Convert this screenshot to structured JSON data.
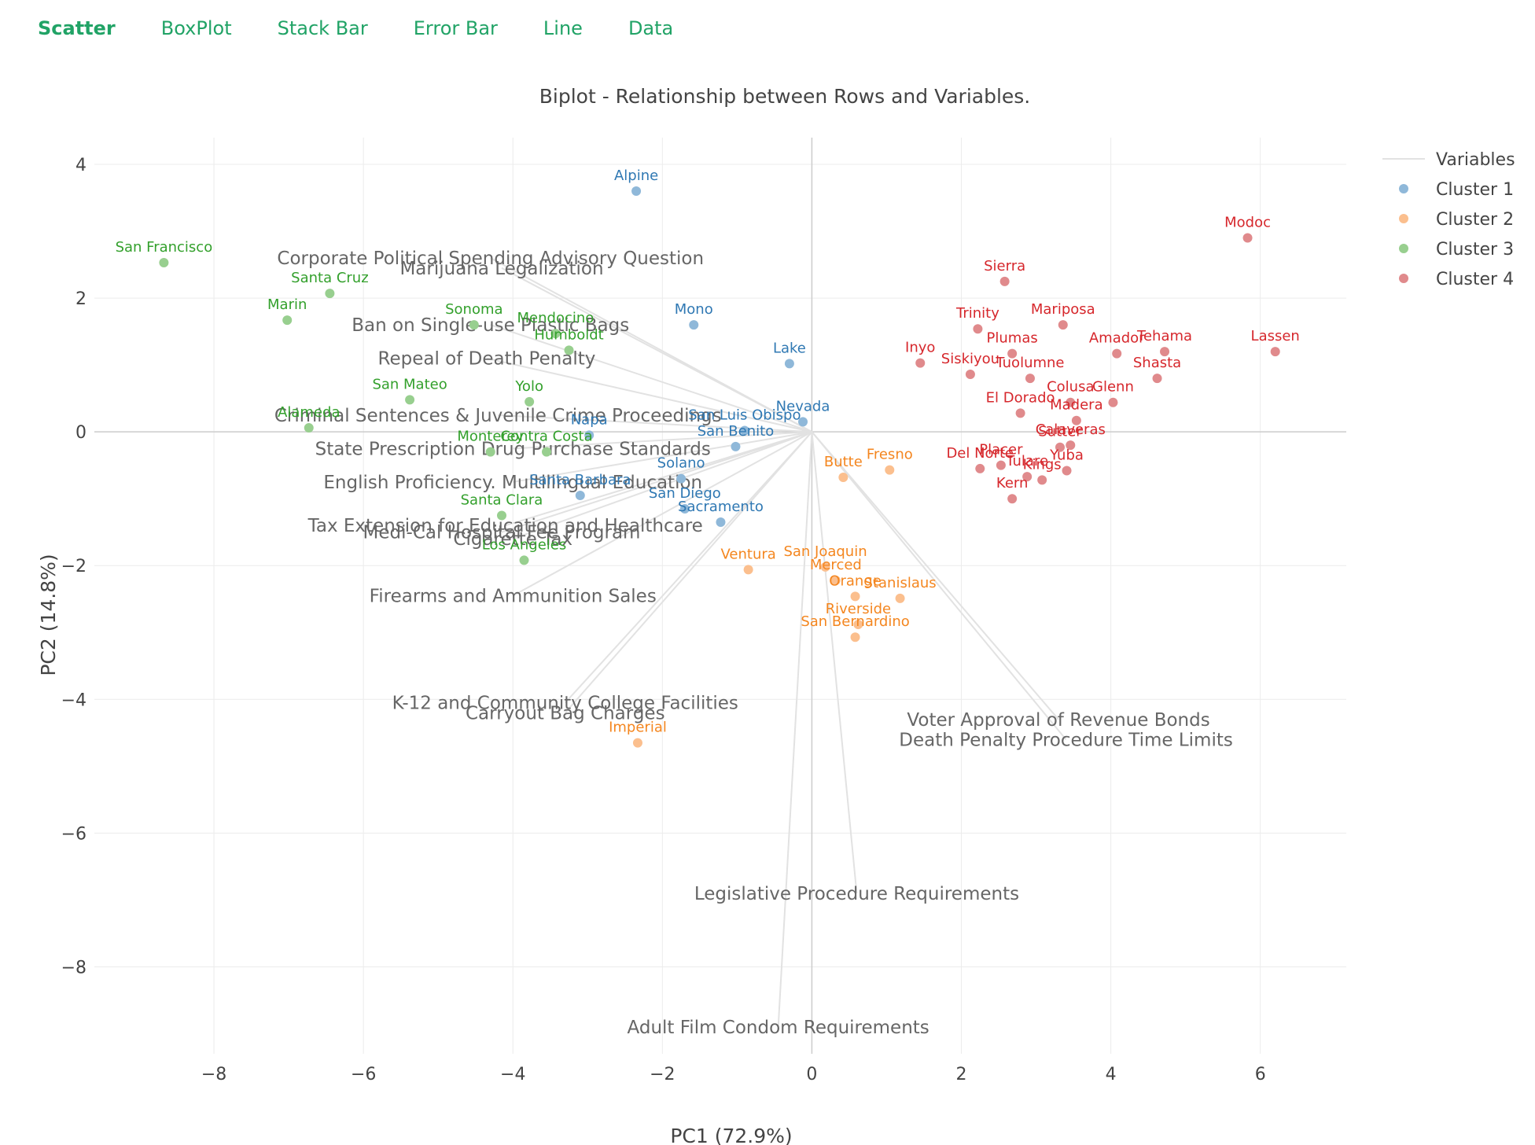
{
  "tabs": [
    {
      "label": "Scatter",
      "active": true
    },
    {
      "label": "BoxPlot",
      "active": false
    },
    {
      "label": "Stack Bar",
      "active": false
    },
    {
      "label": "Error Bar",
      "active": false
    },
    {
      "label": "Line",
      "active": false
    },
    {
      "label": "Data",
      "active": false
    }
  ],
  "colors": {
    "tab": "#21a366",
    "cluster_points": [
      "#8fb8d9",
      "#fbbf8e",
      "#98cf8f",
      "#e08a8c"
    ],
    "cluster_labels": [
      "#2f78b3",
      "#f4861f",
      "#33a02c",
      "#d6272c"
    ],
    "vectors": "#e2e2e2",
    "grid": "#ececec",
    "zero_line": "#cccccc",
    "vector_text": "#666666"
  },
  "chart_data": {
    "type": "scatter",
    "title": "Biplot - Relationship between Rows and Variables.",
    "xlabel": "PC1 (72.9%)",
    "ylabel": "PC2 (14.8%)",
    "xlim": [
      -9.6,
      7.15
    ],
    "ylim": [
      -9.3,
      4.4
    ],
    "xticks": [
      -8,
      -6,
      -4,
      -2,
      0,
      2,
      4,
      6
    ],
    "yticks": [
      4,
      2,
      0,
      -2,
      -4,
      -6,
      -8
    ],
    "grid": true,
    "legend": {
      "placement": "top-right",
      "entries": [
        "Variables",
        "Cluster 1",
        "Cluster 2",
        "Cluster 3",
        "Cluster 4"
      ]
    },
    "series": [
      {
        "name": "Cluster 1",
        "points": [
          {
            "label": "Alpine",
            "x": -2.35,
            "y": 3.6
          },
          {
            "label": "Mono",
            "x": -1.58,
            "y": 1.6
          },
          {
            "label": "Lake",
            "x": -0.3,
            "y": 1.02
          },
          {
            "label": "Nevada",
            "x": -0.12,
            "y": 0.15
          },
          {
            "label": "San Luis Obispo",
            "x": -0.9,
            "y": 0.02
          },
          {
            "label": "San Benito",
            "x": -1.02,
            "y": -0.22
          },
          {
            "label": "Napa",
            "x": -2.98,
            "y": -0.05
          },
          {
            "label": "Solano",
            "x": -1.75,
            "y": -0.7
          },
          {
            "label": "Santa Barbara",
            "x": -3.1,
            "y": -0.95
          },
          {
            "label": "San Diego",
            "x": -1.7,
            "y": -1.15
          },
          {
            "label": "Sacramento",
            "x": -1.22,
            "y": -1.35
          }
        ]
      },
      {
        "name": "Cluster 2",
        "points": [
          {
            "label": "Butte",
            "x": 0.42,
            "y": -0.68
          },
          {
            "label": "Fresno",
            "x": 1.04,
            "y": -0.57
          },
          {
            "label": "Ventura",
            "x": -0.85,
            "y": -2.06
          },
          {
            "label": "San Joaquin",
            "x": 0.18,
            "y": -2.02
          },
          {
            "label": "Merced",
            "x": 0.32,
            "y": -2.22
          },
          {
            "label": "Orange",
            "x": 0.58,
            "y": -2.46
          },
          {
            "label": "Stanislaus",
            "x": 1.18,
            "y": -2.49
          },
          {
            "label": "Riverside",
            "x": 0.62,
            "y": -2.88
          },
          {
            "label": "San Bernardino",
            "x": 0.58,
            "y": -3.07
          },
          {
            "label": "Imperial",
            "x": -2.33,
            "y": -4.65
          }
        ]
      },
      {
        "name": "Cluster 3",
        "points": [
          {
            "label": "San Francisco",
            "x": -8.67,
            "y": 2.53
          },
          {
            "label": "Santa Cruz",
            "x": -6.45,
            "y": 2.07
          },
          {
            "label": "Marin",
            "x": -7.02,
            "y": 1.67
          },
          {
            "label": "Sonoma",
            "x": -4.52,
            "y": 1.6
          },
          {
            "label": "Mendocino",
            "x": -3.43,
            "y": 1.47
          },
          {
            "label": "Humboldt",
            "x": -3.25,
            "y": 1.22
          },
          {
            "label": "San Mateo",
            "x": -5.38,
            "y": 0.48
          },
          {
            "label": "Yolo",
            "x": -3.78,
            "y": 0.45
          },
          {
            "label": "Alameda",
            "x": -6.73,
            "y": 0.06
          },
          {
            "label": "Monterey",
            "x": -4.3,
            "y": -0.3
          },
          {
            "label": "Contra Costa",
            "x": -3.55,
            "y": -0.3
          },
          {
            "label": "Santa Clara",
            "x": -4.15,
            "y": -1.25
          },
          {
            "label": "Los Angeles",
            "x": -3.85,
            "y": -1.92
          }
        ]
      },
      {
        "name": "Cluster 4",
        "points": [
          {
            "label": "Modoc",
            "x": 5.83,
            "y": 2.9
          },
          {
            "label": "Sierra",
            "x": 2.58,
            "y": 2.25
          },
          {
            "label": "Mariposa",
            "x": 3.36,
            "y": 1.6
          },
          {
            "label": "Trinity",
            "x": 2.22,
            "y": 1.54
          },
          {
            "label": "Plumas",
            "x": 2.68,
            "y": 1.17
          },
          {
            "label": "Amador",
            "x": 4.08,
            "y": 1.17
          },
          {
            "label": "Tehama",
            "x": 4.72,
            "y": 1.2
          },
          {
            "label": "Lassen",
            "x": 6.2,
            "y": 1.2
          },
          {
            "label": "Inyo",
            "x": 1.45,
            "y": 1.03
          },
          {
            "label": "Siskiyou",
            "x": 2.12,
            "y": 0.86
          },
          {
            "label": "Tuolumne",
            "x": 2.92,
            "y": 0.8
          },
          {
            "label": "Shasta",
            "x": 4.62,
            "y": 0.8
          },
          {
            "label": "Colusa",
            "x": 3.46,
            "y": 0.44
          },
          {
            "label": "Glenn",
            "x": 4.03,
            "y": 0.44
          },
          {
            "label": "El Dorado",
            "x": 2.79,
            "y": 0.28
          },
          {
            "label": "Madera",
            "x": 3.54,
            "y": 0.17
          },
          {
            "label": "Calaveras",
            "x": 3.46,
            "y": -0.2
          },
          {
            "label": "Sutter",
            "x": 3.32,
            "y": -0.23
          },
          {
            "label": "Del Norte",
            "x": 2.25,
            "y": -0.55
          },
          {
            "label": "Placer",
            "x": 2.53,
            "y": -0.5
          },
          {
            "label": "Tulare",
            "x": 2.88,
            "y": -0.67
          },
          {
            "label": "Kings",
            "x": 3.08,
            "y": -0.72
          },
          {
            "label": "Yuba",
            "x": 3.41,
            "y": -0.58
          },
          {
            "label": "Kern",
            "x": 2.68,
            "y": -1.0
          }
        ]
      }
    ],
    "vectors": [
      {
        "label": "Corporate Political Spending Advisory Question",
        "x": -4.3,
        "y": 2.6
      },
      {
        "label": "Marijuana Legalization",
        "x": -4.15,
        "y": 2.45
      },
      {
        "label": "Ban on Single-use Plastic Bags",
        "x": -4.3,
        "y": 1.6
      },
      {
        "label": "Repeal of Death Penalty",
        "x": -4.35,
        "y": 1.1
      },
      {
        "label": "Criminal Sentences & Juvenile Crime Proceedings",
        "x": -4.2,
        "y": 0.25
      },
      {
        "label": "State Prescription Drug Purchase Standards",
        "x": -4.0,
        "y": -0.25
      },
      {
        "label": "English Proficiency. Multilingual Education",
        "x": -4.0,
        "y": -0.75
      },
      {
        "label": "Tax Extension for Education and Healthcare",
        "x": -4.1,
        "y": -1.4
      },
      {
        "label": "Medi-Cal Hospital Fee Program",
        "x": -4.15,
        "y": -1.5
      },
      {
        "label": "Cigarette Tax",
        "x": -4.0,
        "y": -1.6
      },
      {
        "label": "Firearms and Ammunition Sales",
        "x": -4.0,
        "y": -2.45
      },
      {
        "label": "K-12 and Community College Facilities",
        "x": -3.3,
        "y": -4.05
      },
      {
        "label": "Carryout Bag Charges",
        "x": -3.3,
        "y": -4.2
      },
      {
        "label": "Voter Approval of Revenue Bonds",
        "x": 3.3,
        "y": -4.3
      },
      {
        "label": "Death Penalty Procedure Time Limits",
        "x": 3.4,
        "y": -4.6
      },
      {
        "label": "Legislative Procedure Requirements",
        "x": 0.6,
        "y": -6.9
      },
      {
        "label": "Adult Film Condom Requirements",
        "x": -0.45,
        "y": -8.9
      }
    ]
  }
}
